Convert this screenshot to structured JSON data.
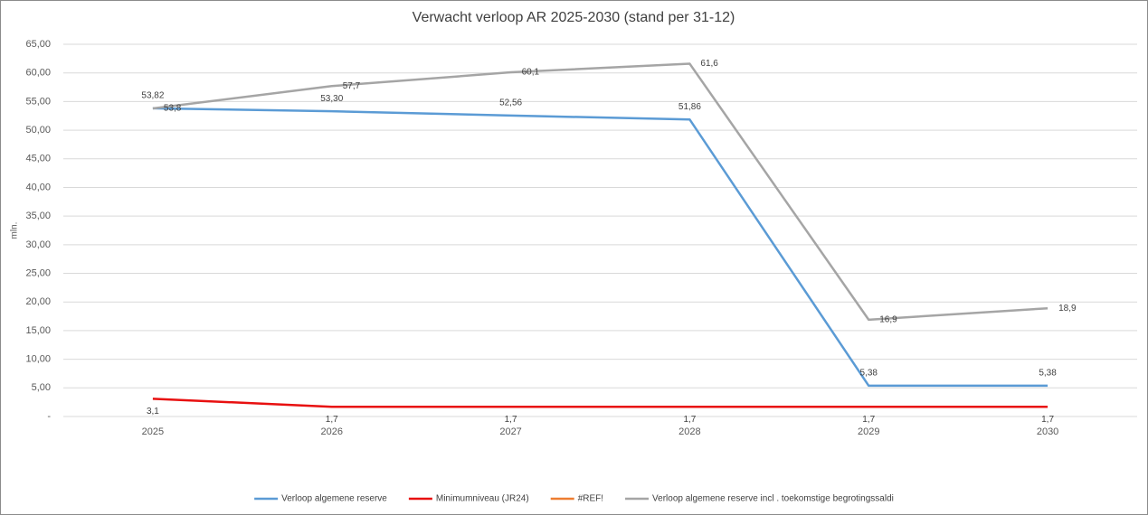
{
  "chart_data": {
    "type": "line",
    "title": "Verwacht verloop AR 2025-2030 (stand per 31-12)",
    "y_label": "mln.",
    "categories": [
      "2025",
      "2026",
      "2027",
      "2028",
      "2029",
      "2030"
    ],
    "ylim": [
      0,
      65
    ],
    "yticks": [
      {
        "value": 0,
        "label": "-"
      },
      {
        "value": 5,
        "label": "5,00"
      },
      {
        "value": 10,
        "label": "10,00"
      },
      {
        "value": 15,
        "label": "15,00"
      },
      {
        "value": 20,
        "label": "20,00"
      },
      {
        "value": 25,
        "label": "25,00"
      },
      {
        "value": 30,
        "label": "30,00"
      },
      {
        "value": 35,
        "label": "35,00"
      },
      {
        "value": 40,
        "label": "40,00"
      },
      {
        "value": 45,
        "label": "45,00"
      },
      {
        "value": 50,
        "label": "50,00"
      },
      {
        "value": 55,
        "label": "55,00"
      },
      {
        "value": 60,
        "label": "60,00"
      },
      {
        "value": 65,
        "label": "65,00"
      }
    ],
    "grid": true,
    "legend": "bottom",
    "series": [
      {
        "name": "Verloop algemene reserve",
        "color": "#5b9bd5",
        "values": [
          53.82,
          53.3,
          52.56,
          51.86,
          5.38,
          5.38
        ],
        "value_labels": [
          "53,82",
          "53,30",
          "52,56",
          "51,86",
          "5,38",
          "5,38"
        ]
      },
      {
        "name": "Minimumniveau (JR24)",
        "color": "#e81010",
        "values": [
          3.1,
          1.7,
          1.7,
          1.7,
          1.7,
          1.7
        ],
        "value_labels": [
          "3,1",
          "1,7",
          "1,7",
          "1,7",
          "1,7",
          "1,7"
        ]
      },
      {
        "name": "#REF!",
        "color": "#ed7d31",
        "values": [
          null,
          null,
          null,
          null,
          null,
          null
        ]
      },
      {
        "name": "Verloop algemene reserve incl . toekomstige begrotingssaldi",
        "color": "#a5a5a5",
        "values": [
          53.8,
          57.7,
          60.1,
          61.6,
          16.9,
          18.9
        ],
        "value_labels": [
          "53,8",
          "57,7",
          "60,1",
          "61,6",
          "16,9",
          "18,9"
        ]
      }
    ]
  }
}
